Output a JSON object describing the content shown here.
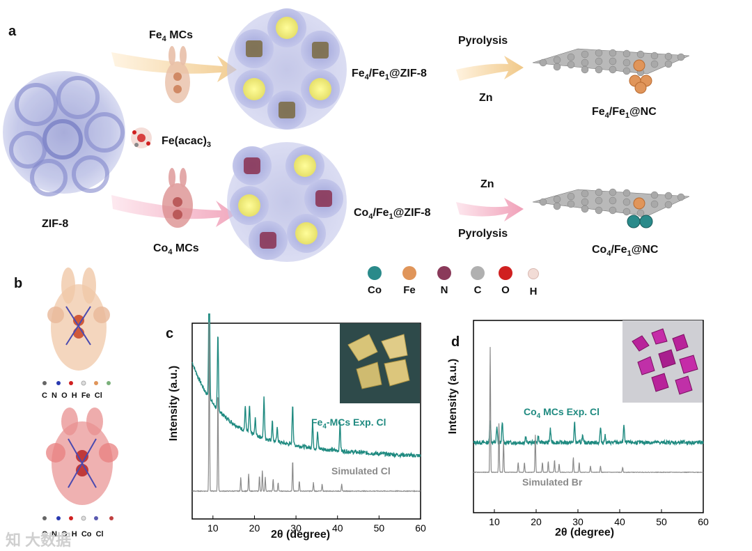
{
  "panel_a": {
    "letter": "a",
    "zif": "ZIF-8",
    "fe4_mcs": [
      "Fe",
      "4",
      " MCs"
    ],
    "fe_acac": [
      "Fe(acac)",
      "3",
      ""
    ],
    "co4_mcs": [
      "Co",
      "4",
      " MCs"
    ],
    "fe_zif": [
      "Fe",
      "4",
      "/Fe",
      "1",
      "@ZIF-8"
    ],
    "co_zif": [
      "Co",
      "4",
      "/Fe",
      "1",
      "@ZIF-8"
    ],
    "pyrolysis_top": "Pyrolysis",
    "zn_top": "Zn",
    "zn_bottom": "Zn",
    "pyrolysis_bottom": "Pyrolysis",
    "fe_nc": [
      "Fe",
      "4",
      "/Fe",
      "1",
      "@NC"
    ],
    "co_nc": [
      "Co",
      "4",
      "/Fe",
      "1",
      "@NC"
    ],
    "legend": [
      {
        "label": "Co",
        "color": "#2a8a8a"
      },
      {
        "label": "Fe",
        "color": "#e0955a"
      },
      {
        "label": "N",
        "color": "#8a3a5a"
      },
      {
        "label": "C",
        "color": "#b0b0b0"
      },
      {
        "label": "O",
        "color": "#d02020"
      },
      {
        "label": "H",
        "color": "#f2dcd6"
      }
    ]
  },
  "panel_b": {
    "letter": "b",
    "legend_top": "C  N  O  H  Fe  Cl",
    "legend_bottom": "C  N  O  H  Co  Cl"
  },
  "watermark": "知 大数据",
  "chart_data": [
    {
      "panel": "c",
      "type": "line",
      "xlabel": "2θ (degree)",
      "ylabel": "Intensity (a.u.)",
      "xlim": [
        5,
        60
      ],
      "xticks": [
        10,
        20,
        30,
        40,
        50,
        60
      ],
      "series": [
        {
          "name": "Fe4-MCs Exp. Cl",
          "color": "#1f8a80"
        },
        {
          "name": "Simulated Cl",
          "color": "#8a8a8a"
        }
      ],
      "exp_label": [
        "Fe",
        "4",
        "-MCs Exp. Cl"
      ],
      "sim_label": "Simulated Cl",
      "exp_peaks": [
        [
          9.1,
          1.0
        ],
        [
          11.2,
          0.55
        ],
        [
          17.8,
          0.18
        ],
        [
          18.8,
          0.2
        ],
        [
          20.2,
          0.12
        ],
        [
          22.3,
          0.3
        ],
        [
          24.3,
          0.14
        ],
        [
          25.5,
          0.1
        ],
        [
          29.2,
          0.3
        ],
        [
          34.0,
          0.18
        ],
        [
          35.2,
          0.12
        ],
        [
          40.6,
          0.2
        ]
      ],
      "sim_peaks": [
        [
          9.1,
          1.0
        ],
        [
          11.2,
          0.6
        ],
        [
          16.7,
          0.08
        ],
        [
          18.6,
          0.1
        ],
        [
          21.2,
          0.09
        ],
        [
          21.9,
          0.12
        ],
        [
          22.6,
          0.08
        ],
        [
          24.5,
          0.07
        ],
        [
          25.7,
          0.05
        ],
        [
          29.2,
          0.18
        ],
        [
          30.8,
          0.06
        ],
        [
          34.2,
          0.05
        ],
        [
          36.3,
          0.04
        ],
        [
          41.0,
          0.04
        ]
      ]
    },
    {
      "panel": "d",
      "type": "line",
      "xlabel": "2θ (degree)",
      "ylabel": "Intensity (a.u.)",
      "xlim": [
        5,
        60
      ],
      "xticks": [
        10,
        20,
        30,
        40,
        50,
        60
      ],
      "series": [
        {
          "name": "Co4 MCs Exp. Cl",
          "color": "#1f8a80"
        },
        {
          "name": "Simulated Br",
          "color": "#8a8a8a"
        }
      ],
      "exp_label": [
        "Co",
        "4",
        " MCs Exp. Cl"
      ],
      "sim_label": "Simulated Br",
      "exp_peaks": [
        [
          9.0,
          0.35
        ],
        [
          10.6,
          0.22
        ],
        [
          11.9,
          0.3
        ],
        [
          17.5,
          0.08
        ],
        [
          20.5,
          0.1
        ],
        [
          23.4,
          0.2
        ],
        [
          29.2,
          0.3
        ],
        [
          31.1,
          0.1
        ],
        [
          35.4,
          0.22
        ],
        [
          36.5,
          0.1
        ],
        [
          41.0,
          0.26
        ]
      ],
      "sim_peaks": [
        [
          9.0,
          1.0
        ],
        [
          11.1,
          0.4
        ],
        [
          12.2,
          0.25
        ],
        [
          15.7,
          0.08
        ],
        [
          17.2,
          0.08
        ],
        [
          19.8,
          0.3
        ],
        [
          21.5,
          0.08
        ],
        [
          22.9,
          0.09
        ],
        [
          24.4,
          0.1
        ],
        [
          25.5,
          0.07
        ],
        [
          28.9,
          0.12
        ],
        [
          30.3,
          0.08
        ],
        [
          33.0,
          0.05
        ],
        [
          35.4,
          0.05
        ],
        [
          40.7,
          0.04
        ]
      ]
    }
  ]
}
